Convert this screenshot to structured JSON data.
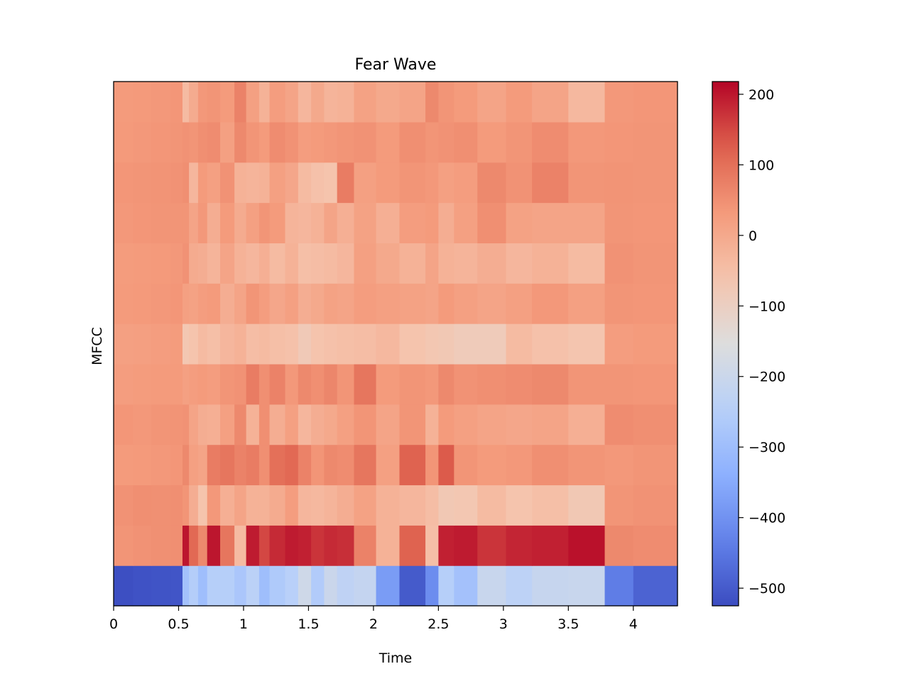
{
  "chart_data": {
    "type": "heatmap",
    "title": "Fear Wave",
    "xlabel": "Time",
    "ylabel": "MFCC",
    "xlim": [
      0,
      4.34
    ],
    "x_ticks": [
      "0",
      "0.5",
      "1",
      "1.5",
      "2",
      "2.5",
      "3",
      "3.5",
      "4"
    ],
    "x_tick_values": [
      0,
      0.5,
      1,
      1.5,
      2,
      2.5,
      3,
      3.5,
      4
    ],
    "n_coefficients": 13,
    "n_frames": 30,
    "frame_times": [
      0,
      0.15,
      0.29,
      0.44,
      0.53,
      0.58,
      0.65,
      0.72,
      0.82,
      0.93,
      1.02,
      1.12,
      1.2,
      1.32,
      1.42,
      1.52,
      1.62,
      1.72,
      1.85,
      2.02,
      2.2,
      2.4,
      2.5,
      2.62,
      2.8,
      3.02,
      3.22,
      3.5,
      3.78,
      4.0
    ],
    "rows": [
      [
        -520,
        -515,
        -512,
        -510,
        -290,
        -255,
        -300,
        -250,
        -250,
        -275,
        -240,
        -300,
        -265,
        -245,
        -190,
        -260,
        -200,
        -230,
        -215,
        -380,
        -500,
        -410,
        -250,
        -290,
        -205,
        -235,
        -210,
        -205,
        -440,
        -485
      ],
      [
        40,
        45,
        48,
        50,
        200,
        110,
        60,
        200,
        90,
        -40,
        195,
        150,
        180,
        195,
        190,
        170,
        180,
        175,
        70,
        -20,
        120,
        -50,
        190,
        195,
        170,
        185,
        190,
        205,
        60,
        55
      ],
      [
        45,
        50,
        48,
        50,
        40,
        -10,
        -60,
        35,
        -15,
        10,
        -20,
        -20,
        -5,
        25,
        -30,
        -35,
        -25,
        -10,
        15,
        -20,
        -30,
        -45,
        -75,
        -70,
        -40,
        -60,
        -50,
        -75,
        40,
        45
      ],
      [
        30,
        32,
        35,
        38,
        60,
        20,
        10,
        80,
        90,
        70,
        80,
        50,
        100,
        110,
        70,
        40,
        60,
        55,
        90,
        20,
        120,
        40,
        130,
        40,
        30,
        35,
        50,
        40,
        35,
        40
      ],
      [
        38,
        35,
        40,
        42,
        45,
        10,
        -10,
        -15,
        20,
        60,
        -20,
        50,
        -10,
        20,
        -30,
        -10,
        0,
        20,
        40,
        10,
        40,
        -20,
        30,
        20,
        10,
        5,
        10,
        -15,
        55,
        50
      ],
      [
        25,
        28,
        30,
        30,
        20,
        25,
        30,
        25,
        40,
        45,
        80,
        50,
        70,
        35,
        60,
        50,
        65,
        40,
        90,
        30,
        40,
        35,
        60,
        45,
        50,
        55,
        60,
        40,
        40,
        38
      ],
      [
        20,
        22,
        25,
        28,
        -70,
        -60,
        -40,
        -50,
        -30,
        -20,
        -45,
        -40,
        -50,
        -55,
        -80,
        -60,
        -55,
        -50,
        -45,
        -35,
        -60,
        -70,
        -75,
        -85,
        -85,
        -40,
        -55,
        -65,
        25,
        30
      ],
      [
        30,
        32,
        35,
        38,
        20,
        15,
        25,
        30,
        -10,
        10,
        40,
        25,
        5,
        20,
        -10,
        0,
        15,
        10,
        25,
        20,
        15,
        10,
        30,
        20,
        10,
        20,
        35,
        20,
        40,
        38
      ],
      [
        28,
        30,
        32,
        35,
        45,
        -5,
        -10,
        -25,
        10,
        -20,
        -30,
        -15,
        -40,
        -20,
        -50,
        -45,
        -40,
        -30,
        20,
        0,
        -20,
        10,
        -20,
        -25,
        -10,
        -30,
        -20,
        -40,
        45,
        40
      ],
      [
        35,
        38,
        40,
        40,
        40,
        10,
        35,
        -10,
        30,
        -5,
        20,
        40,
        30,
        -25,
        -30,
        -20,
        10,
        -15,
        15,
        -15,
        25,
        30,
        -10,
        20,
        50,
        15,
        10,
        10,
        40,
        38
      ],
      [
        38,
        40,
        42,
        45,
        50,
        -30,
        30,
        20,
        45,
        -20,
        -25,
        -20,
        20,
        5,
        -40,
        -55,
        -60,
        80,
        20,
        30,
        40,
        35,
        20,
        25,
        60,
        45,
        70,
        40,
        42,
        40
      ],
      [
        32,
        35,
        38,
        40,
        45,
        40,
        50,
        55,
        20,
        60,
        40,
        30,
        55,
        45,
        25,
        30,
        35,
        40,
        45,
        30,
        50,
        40,
        45,
        50,
        30,
        40,
        55,
        35,
        38,
        40
      ],
      [
        30,
        32,
        35,
        38,
        -40,
        -5,
        35,
        40,
        30,
        70,
        20,
        -20,
        25,
        10,
        -30,
        0,
        -25,
        -20,
        15,
        0,
        10,
        60,
        40,
        30,
        10,
        30,
        10,
        -35,
        35,
        38
      ]
    ],
    "colorbar": {
      "colormap": "coolwarm",
      "vmin": -525,
      "vmax": 218,
      "ticks": [
        "200",
        "100",
        "0",
        "−100",
        "−200",
        "−300",
        "−400",
        "−500"
      ],
      "tick_values": [
        200,
        100,
        0,
        -100,
        -200,
        -300,
        -400,
        -500
      ]
    }
  }
}
